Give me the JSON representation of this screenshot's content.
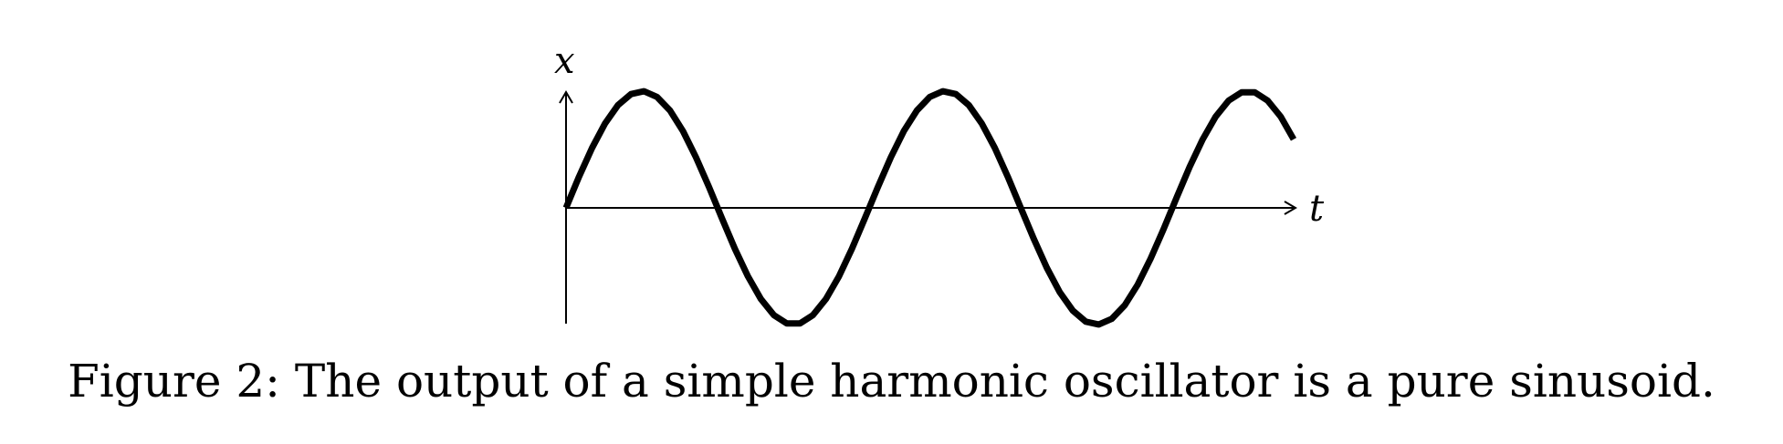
{
  "chart_data": {
    "type": "line",
    "title": "",
    "xlabel": "t",
    "ylabel": "x",
    "function": "sine",
    "cycles": 2.4,
    "xlim": [
      0,
      2.4
    ],
    "ylim": [
      -1,
      1
    ],
    "grid": false,
    "legend": "none",
    "line_color": "#000000",
    "axis_color": "#000000"
  },
  "caption": "Figure 2: The output of a simple harmonic oscillator is a pure sinusoid."
}
